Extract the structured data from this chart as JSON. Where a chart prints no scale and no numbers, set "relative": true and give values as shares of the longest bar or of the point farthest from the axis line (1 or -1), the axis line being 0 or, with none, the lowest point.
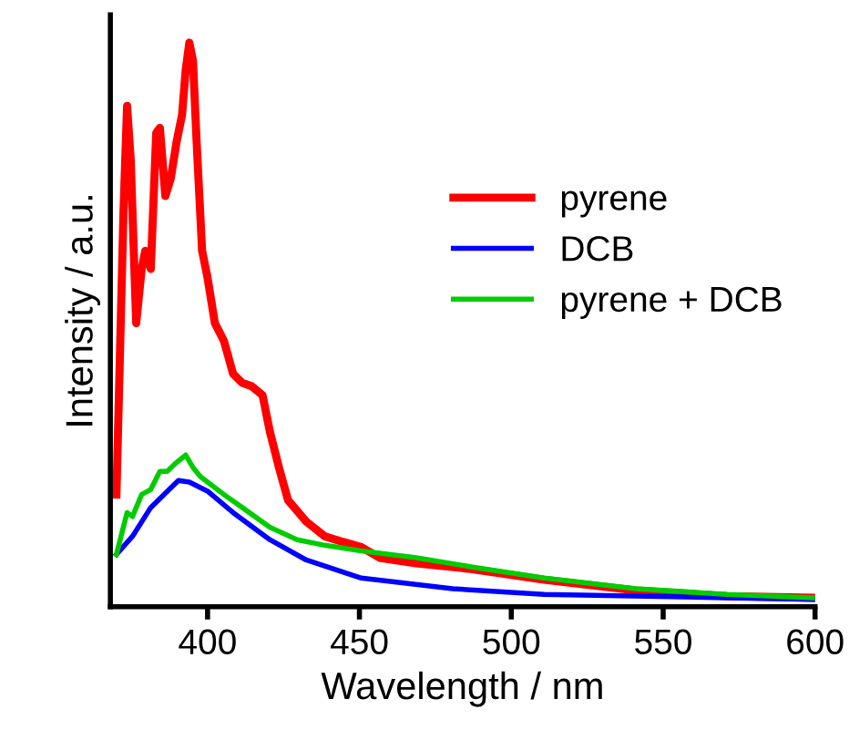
{
  "chart_data": {
    "type": "line",
    "relative": true,
    "xlabel": "Wavelength / nm",
    "ylabel": "Intensity / a.u.",
    "xlim": [
      368,
      600
    ],
    "xticks": [
      400,
      450,
      500,
      550,
      600
    ],
    "grid": false,
    "legend": "right",
    "line_style": "solid",
    "marker": "none",
    "series": [
      {
        "name": "pyrene",
        "color": "#ff0000",
        "x": [
          370,
          372.3,
          373.5,
          374.7,
          376.5,
          378.3,
          379.5,
          381.3,
          383.1,
          384.3,
          386.1,
          387.9,
          389.8,
          391.6,
          392.8,
          394,
          395.2,
          396.4,
          398.2,
          400,
          402.4,
          405.4,
          408.4,
          411.4,
          414.5,
          418.1,
          420.5,
          423.5,
          426.5,
          432.5,
          438.6,
          444.6,
          450.6,
          456.6,
          468.7,
          486.7,
          510.8,
          541,
          571,
          599.4
        ],
        "values": [
          0.199,
          0.696,
          0.888,
          0.792,
          0.503,
          0.599,
          0.631,
          0.599,
          0.84,
          0.849,
          0.728,
          0.76,
          0.824,
          0.872,
          0.952,
          1.0,
          0.968,
          0.824,
          0.631,
          0.583,
          0.503,
          0.471,
          0.413,
          0.397,
          0.391,
          0.375,
          0.311,
          0.247,
          0.189,
          0.151,
          0.125,
          0.115,
          0.106,
          0.087,
          0.077,
          0.067,
          0.048,
          0.029,
          0.019,
          0.016
        ]
      },
      {
        "name": "DCB",
        "color": "#0000ff",
        "x": [
          370,
          375.3,
          381.3,
          387.4,
          390.4,
          394,
          400,
          408.4,
          420.5,
          432.5,
          450.6,
          480.7,
          510.8,
          571,
          599.4
        ],
        "values": [
          0.093,
          0.125,
          0.176,
          0.208,
          0.224,
          0.221,
          0.205,
          0.167,
          0.119,
          0.083,
          0.051,
          0.032,
          0.022,
          0.016,
          0.013
        ]
      },
      {
        "name": "pyrene + DCB",
        "color": "#00cc00",
        "x": [
          370,
          373.5,
          375.3,
          378.3,
          381.3,
          384.3,
          386.7,
          389.2,
          392.8,
          395.2,
          397.6,
          400,
          405.4,
          411.4,
          420.5,
          429.5,
          438.6,
          450.6,
          468.7,
          486.7,
          510.8,
          541,
          571,
          599.4
        ],
        "values": [
          0.093,
          0.167,
          0.16,
          0.199,
          0.208,
          0.24,
          0.24,
          0.253,
          0.269,
          0.247,
          0.231,
          0.221,
          0.199,
          0.176,
          0.141,
          0.119,
          0.109,
          0.099,
          0.087,
          0.071,
          0.051,
          0.032,
          0.022,
          0.016
        ]
      }
    ]
  }
}
